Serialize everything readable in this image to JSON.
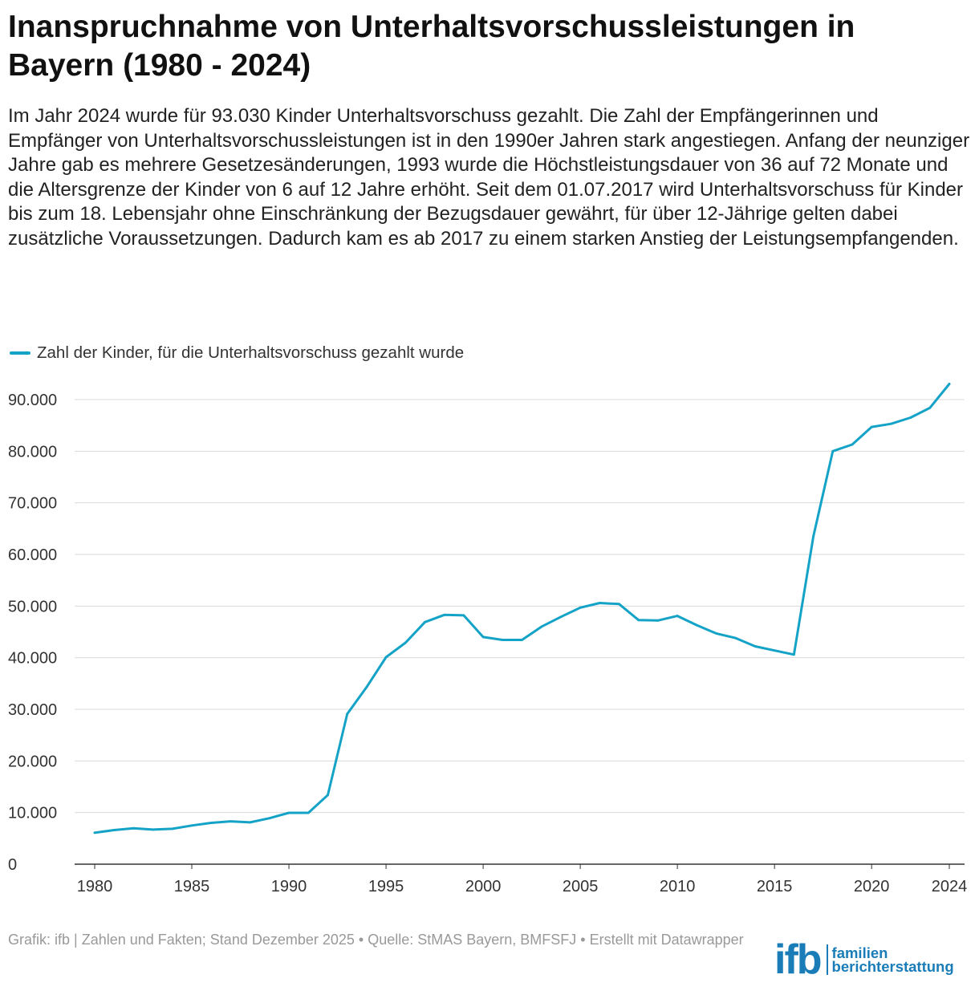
{
  "title": "Inanspruchnahme von Unterhaltsvorschussleistungen in Bayern (1980 - 2024)",
  "description": "Im Jahr 2024 wurde für 93.030 Kinder Unterhaltsvorschuss gezahlt. Die Zahl der Empfängerinnen und Empfänger von Unterhaltsvorschussleistungen ist in den 1990er Jahren stark angestiegen. Anfang der neunziger Jahre gab es mehrere Gesetzesänderungen, 1993 wurde die Höchstleistungsdauer von 36 auf 72 Monate und die Altersgrenze der Kinder von 6 auf 12 Jahre erhöht. Seit dem 01.07.2017 wird Unterhaltsvorschuss für Kinder bis zum 18. Lebensjahr ohne Einschränkung der Bezugsdauer gewährt, für über 12-Jährige gelten dabei zusätzliche Voraussetzungen. Dadurch kam es ab 2017 zu einem starken Anstieg der Leistungsempfangenden.",
  "footer": "Grafik: ifb | Zahlen und Fakten; Stand Dezember 2025  • Quelle: StMAS Bayern, BMFSFJ • Erstellt mit Datawrapper",
  "logo": {
    "mark": "ifb",
    "line1": "familien",
    "line2": "berichterstattung"
  },
  "colors": {
    "line": "#14a3c7",
    "grid": "#d9d9d9",
    "axis": "#333333",
    "tick_text": "#333333",
    "logo_blue": "#1a7db8"
  },
  "chart_data": {
    "type": "line",
    "title": "",
    "xlabel": "",
    "ylabel": "",
    "xlim": [
      1980,
      2024
    ],
    "ylim": [
      0,
      90000
    ],
    "grid": true,
    "legend_position": "top-left",
    "x_ticks": [
      1980,
      1985,
      1990,
      1995,
      2000,
      2005,
      2010,
      2015,
      2020,
      2024
    ],
    "y_ticks": [
      0,
      10000,
      20000,
      30000,
      40000,
      50000,
      60000,
      70000,
      80000,
      90000
    ],
    "y_tick_labels": [
      "0",
      "10.000",
      "20.000",
      "30.000",
      "40.000",
      "50.000",
      "60.000",
      "70.000",
      "80.000",
      "90.000"
    ],
    "series": [
      {
        "name": "Zahl der Kinder, für die Unterhaltsvorschuss gezahlt wurde",
        "x": [
          1980,
          1981,
          1982,
          1983,
          1984,
          1985,
          1986,
          1987,
          1988,
          1989,
          1990,
          1991,
          1992,
          1993,
          1994,
          1995,
          1996,
          1997,
          1998,
          1999,
          2000,
          2001,
          2002,
          2003,
          2004,
          2005,
          2006,
          2007,
          2008,
          2009,
          2010,
          2011,
          2012,
          2013,
          2014,
          2015,
          2016,
          2017,
          2018,
          2019,
          2020,
          2021,
          2022,
          2023,
          2024
        ],
        "values": [
          6100,
          6600,
          6950,
          6700,
          6850,
          7500,
          8000,
          8300,
          8100,
          8900,
          9950,
          9950,
          13400,
          29100,
          34300,
          40100,
          42900,
          46900,
          48300,
          48200,
          44000,
          43450,
          43450,
          46000,
          47900,
          49700,
          50600,
          50400,
          47300,
          47200,
          48100,
          46300,
          44700,
          43800,
          42200,
          41400,
          40600,
          63500,
          80000,
          81300,
          84700,
          85300,
          86500,
          88400,
          93030
        ]
      }
    ]
  }
}
